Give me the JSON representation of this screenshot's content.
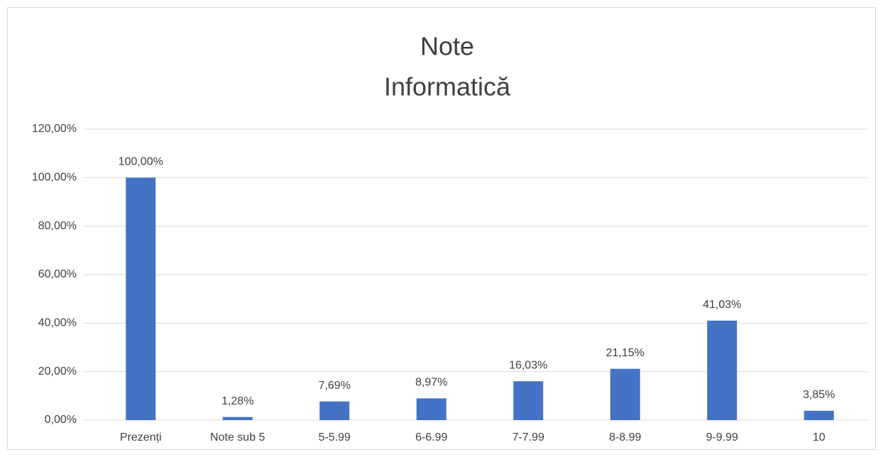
{
  "chart_data": {
    "type": "bar",
    "title": [
      "Note",
      "Informatică"
    ],
    "categories": [
      "Prezenți",
      "Note sub 5",
      "5-5.99",
      "6-6.99",
      "7-7.99",
      "8-8.99",
      "9-9.99",
      "10"
    ],
    "values": [
      100,
      1.28,
      7.69,
      8.97,
      16.03,
      21.15,
      41.03,
      3.85
    ],
    "value_labels": [
      "100,00%",
      "1,28%",
      "7,69%",
      "8,97%",
      "16,03%",
      "21,15%",
      "41,03%",
      "3,85%"
    ],
    "color": "#4472c4",
    "ylim": [
      0,
      120
    ],
    "yticks": [
      {
        "value": 0,
        "label": "0,00%"
      },
      {
        "value": 20,
        "label": "20,00%"
      },
      {
        "value": 40,
        "label": "40,00%"
      },
      {
        "value": 60,
        "label": "60,00%"
      },
      {
        "value": 80,
        "label": "80,00%"
      },
      {
        "value": 100,
        "label": "100,00%"
      },
      {
        "value": 120,
        "label": "120,00%"
      }
    ],
    "grid": true
  }
}
